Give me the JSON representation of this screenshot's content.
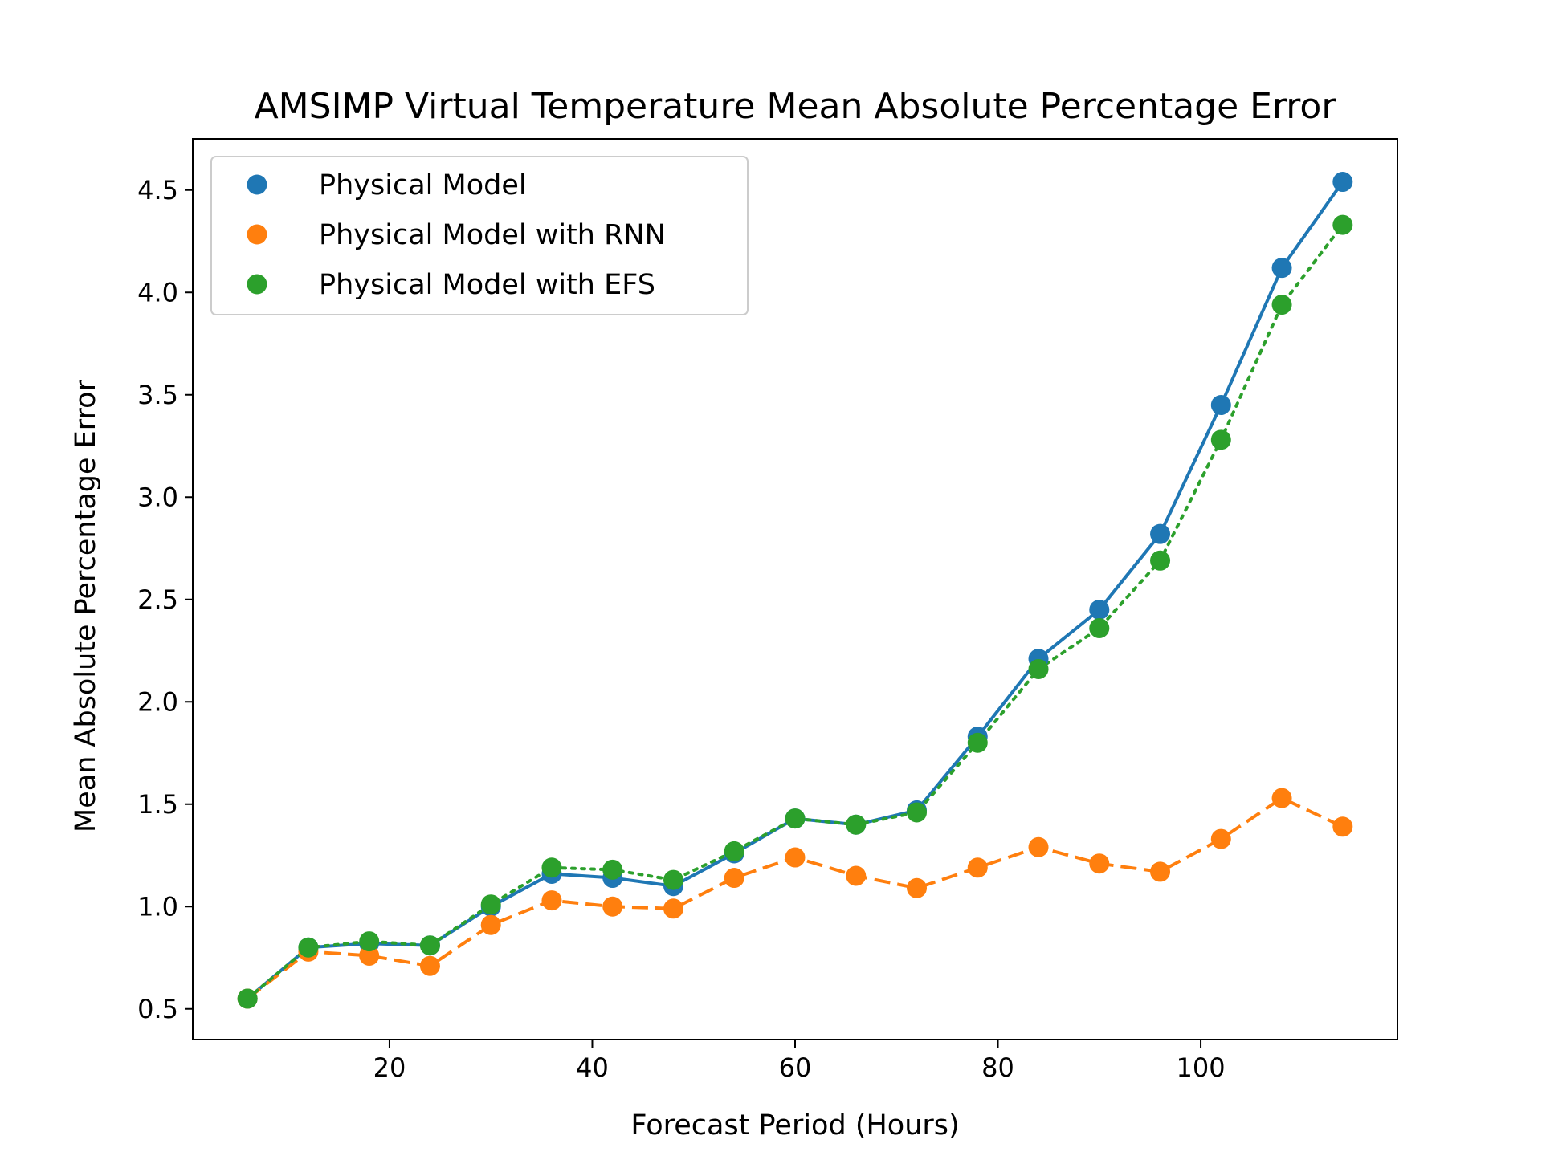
{
  "chart_data": {
    "type": "line",
    "title": "AMSIMP Virtual Temperature Mean Absolute Percentage Error",
    "xlabel": "Forecast Period (Hours)",
    "ylabel": "Mean Absolute Percentage Error",
    "xlim": [
      0.6,
      119.4
    ],
    "ylim": [
      0.35,
      4.75
    ],
    "xticks": [
      20,
      40,
      60,
      80,
      100
    ],
    "yticks": [
      0.5,
      1.0,
      1.5,
      2.0,
      2.5,
      3.0,
      3.5,
      4.0,
      4.5
    ],
    "grid": false,
    "legend_position": "top-left",
    "x": [
      6,
      12,
      18,
      24,
      30,
      36,
      42,
      48,
      54,
      60,
      66,
      72,
      78,
      84,
      90,
      96,
      102,
      108,
      114
    ],
    "series": [
      {
        "name": "Physical Model",
        "color": "#1f77b4",
        "line_style": "solid",
        "values": [
          0.55,
          0.8,
          0.82,
          0.81,
          1.0,
          1.16,
          1.14,
          1.1,
          1.26,
          1.43,
          1.4,
          1.47,
          1.83,
          2.21,
          2.45,
          2.82,
          3.45,
          4.12,
          4.54
        ]
      },
      {
        "name": "Physical Model with RNN",
        "color": "#ff7f0e",
        "line_style": "dashed",
        "values": [
          0.55,
          0.78,
          0.76,
          0.71,
          0.91,
          1.03,
          1.0,
          0.99,
          1.14,
          1.24,
          1.15,
          1.09,
          1.19,
          1.29,
          1.21,
          1.17,
          1.33,
          1.53,
          1.39
        ]
      },
      {
        "name": "Physical Model with EFS",
        "color": "#2ca02c",
        "line_style": "dotted",
        "values": [
          0.55,
          0.8,
          0.83,
          0.81,
          1.01,
          1.19,
          1.18,
          1.13,
          1.27,
          1.43,
          1.4,
          1.46,
          1.8,
          2.16,
          2.36,
          2.69,
          3.28,
          3.94,
          4.33
        ]
      }
    ]
  }
}
